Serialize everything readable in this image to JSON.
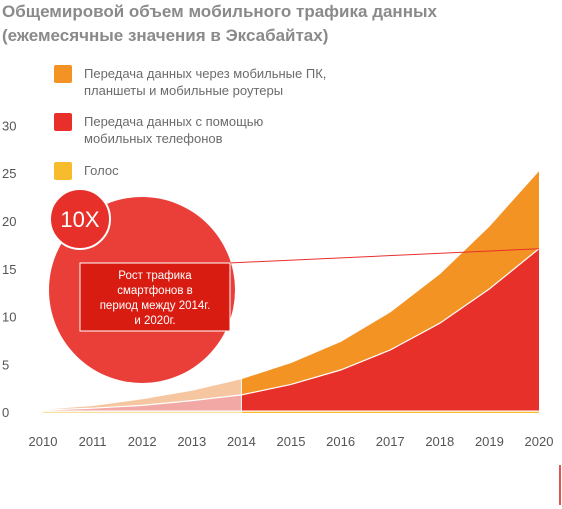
{
  "title": {
    "line1": "Общемировой объем мобильного трафика данных",
    "line2": "(ежемесячные значения в Эксабайтах)"
  },
  "legend": [
    {
      "label_lines": [
        "Передача данных через мобильные ПК,",
        "планшеты и мобильные роутеры"
      ],
      "color": "#f39323"
    },
    {
      "label_lines": [
        "Передача данных с помощью",
        "мобильных телефонов"
      ],
      "color": "#e8302a"
    },
    {
      "label_lines": [
        "Голос"
      ],
      "color": "#f7bc2c"
    }
  ],
  "badge": {
    "text": "10X"
  },
  "callout": {
    "lines": [
      "Рост трафика",
      "смартфонов в",
      "период между 2014г.",
      "и 2020г."
    ]
  },
  "colors": {
    "orange": "#f39323",
    "red": "#e8302a",
    "yellow": "#f7bc2c",
    "historic_orange": "#f6c6a0",
    "historic_red": "#f2a8a4",
    "historic_yellow": "#f9dfa3",
    "badge_fill": "#e8302a",
    "callout_fill": "#d91c12",
    "callout_border": "#ffffff",
    "leader_line": "#e8302a"
  },
  "chart_data": {
    "type": "area",
    "stacked": true,
    "categories": [
      "2010",
      "2011",
      "2012",
      "2013",
      "2014",
      "2015",
      "2016",
      "2017",
      "2018",
      "2019",
      "2020"
    ],
    "y_ticks": [
      "0",
      "5",
      "10",
      "15",
      "20",
      "25",
      "30"
    ],
    "ylim": [
      0,
      30
    ],
    "historic_until": "2014",
    "series": [
      {
        "name": "Голос",
        "color": "#f7bc2c",
        "values": [
          0.2,
          0.2,
          0.2,
          0.2,
          0.2,
          0.2,
          0.2,
          0.2,
          0.2,
          0.2,
          0.2
        ]
      },
      {
        "name": "Передача данных с помощью мобильных телефонов",
        "color": "#e8302a",
        "values": [
          0.1,
          0.3,
          0.6,
          1.1,
          1.7,
          2.8,
          4.3,
          6.4,
          9.2,
          12.8,
          17.0
        ]
      },
      {
        "name": "Передача данных через мобильные ПК, планшеты и мобильные роутеры",
        "color": "#f39323",
        "values": [
          0.1,
          0.3,
          0.7,
          1.1,
          1.7,
          2.3,
          3.0,
          4.0,
          5.2,
          6.6,
          8.2
        ]
      }
    ],
    "growth_annotation": "10X",
    "grid": false
  }
}
